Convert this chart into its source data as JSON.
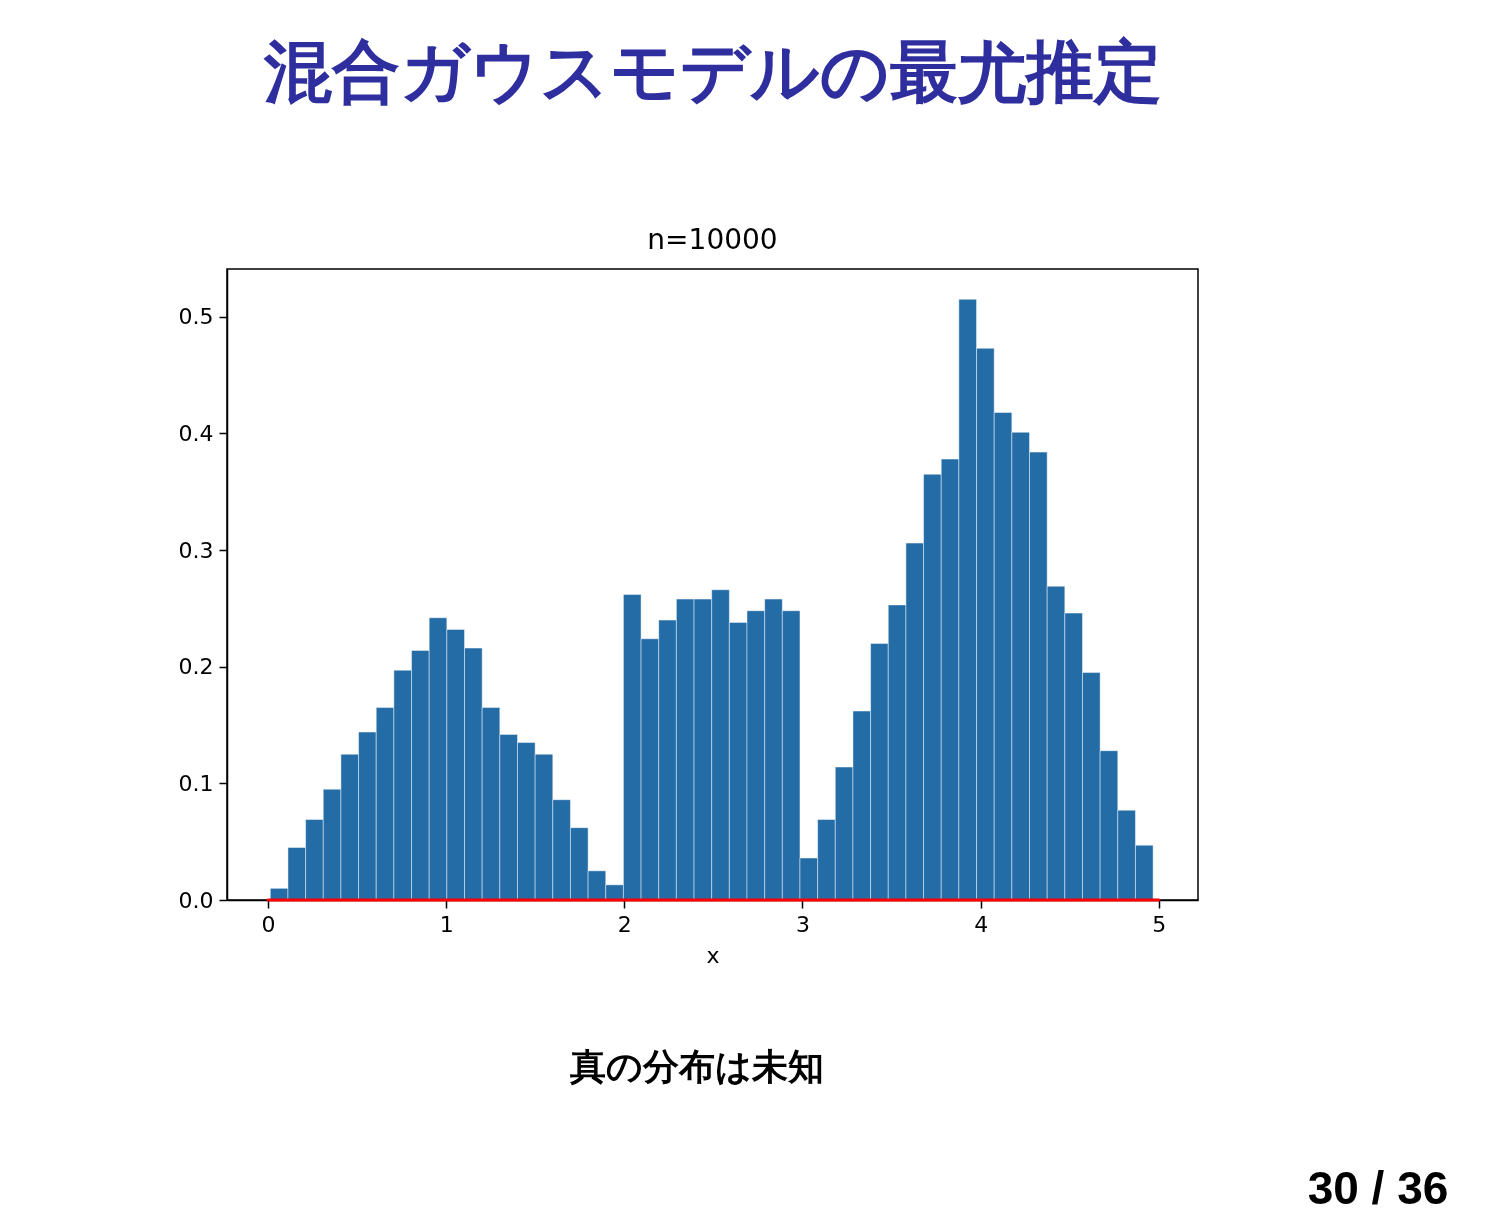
{
  "chart_data": {
    "type": "histogram",
    "title": "混合ガウスモデルの最尤推定",
    "subtitle": "n=10000",
    "xlabel": "x",
    "annotations": [
      "真の分布は未知",
      "30 / 36"
    ],
    "bins": [
      0.013,
      0.1121,
      0.2112,
      0.3103,
      0.4094,
      0.5085,
      0.6076,
      0.7067,
      0.8058,
      0.9049,
      1.004,
      1.1031,
      1.2022,
      1.3013,
      1.4004,
      1.4995,
      1.5986,
      1.6977,
      1.7968,
      1.8959,
      1.995,
      2.0941,
      2.1932,
      2.2923,
      2.3914,
      2.4905,
      2.5896,
      2.6887,
      2.7878,
      2.8869,
      2.986,
      3.0851,
      3.1842,
      3.2833,
      3.3824,
      3.4815,
      3.5806,
      3.6797,
      3.7788,
      3.8779,
      3.977,
      4.0761,
      4.1752,
      4.2743,
      4.3734,
      4.4725,
      4.5716,
      4.6707,
      4.7698,
      4.8689,
      4.968
    ],
    "series": [
      {
        "color": "#246ca6",
        "values": [
          0.01,
          0.045,
          0.069,
          0.095,
          0.125,
          0.144,
          0.165,
          0.197,
          0.214,
          0.242,
          0.232,
          0.216,
          0.165,
          0.142,
          0.135,
          0.125,
          0.086,
          0.062,
          0.025,
          0.013,
          0.262,
          0.224,
          0.24,
          0.258,
          0.258,
          0.266,
          0.238,
          0.248,
          0.258,
          0.248,
          0.036,
          0.069,
          0.114,
          0.162,
          0.22,
          0.253,
          0.306,
          0.365,
          0.378,
          0.515,
          0.473,
          0.418,
          0.401,
          0.384,
          0.269,
          0.246,
          0.195,
          0.128,
          0.077,
          0.047
        ]
      },
      {
        "type": "line",
        "color": "#ff0000",
        "x": [
          0,
          5
        ],
        "values": [
          0,
          0
        ]
      }
    ],
    "xlim": [
      -0.23,
      5.22
    ],
    "ylim": [
      0,
      0.541
    ],
    "xticks": [
      0,
      1,
      2,
      3,
      4,
      5
    ],
    "yticks": [
      {
        "value": 0,
        "label": "0.0"
      },
      0.1,
      0.2,
      0.3,
      0.4,
      0.5
    ],
    "grid": false
  }
}
